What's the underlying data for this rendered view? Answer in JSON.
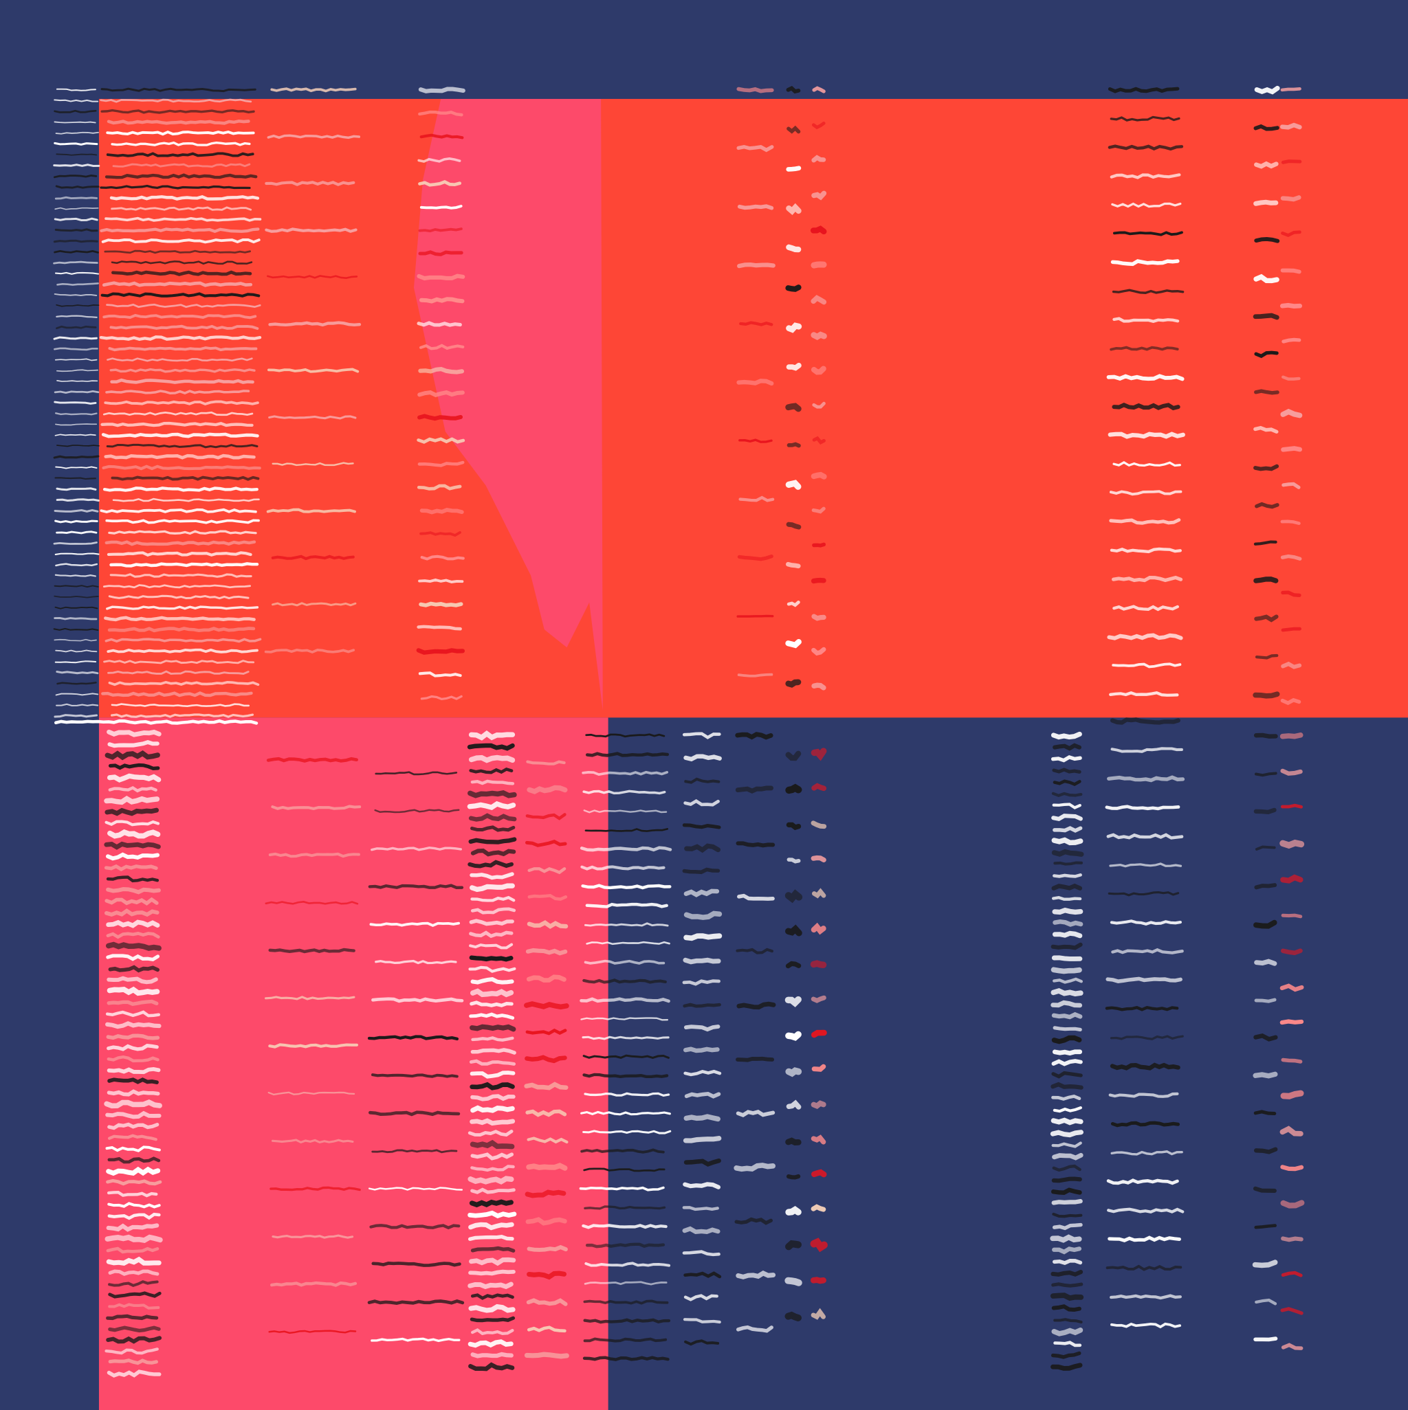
{
  "artwork": {
    "background_color": "#2e3a6a",
    "block_colors": {
      "orange": "#fe4636",
      "pink": "#fd4a6a"
    },
    "stroke_colors": [
      "#ffffff",
      "#1a1a1a",
      "#f7a0a0",
      "#e8141e",
      "#f6d0b8",
      "#ff8a8a"
    ]
  }
}
